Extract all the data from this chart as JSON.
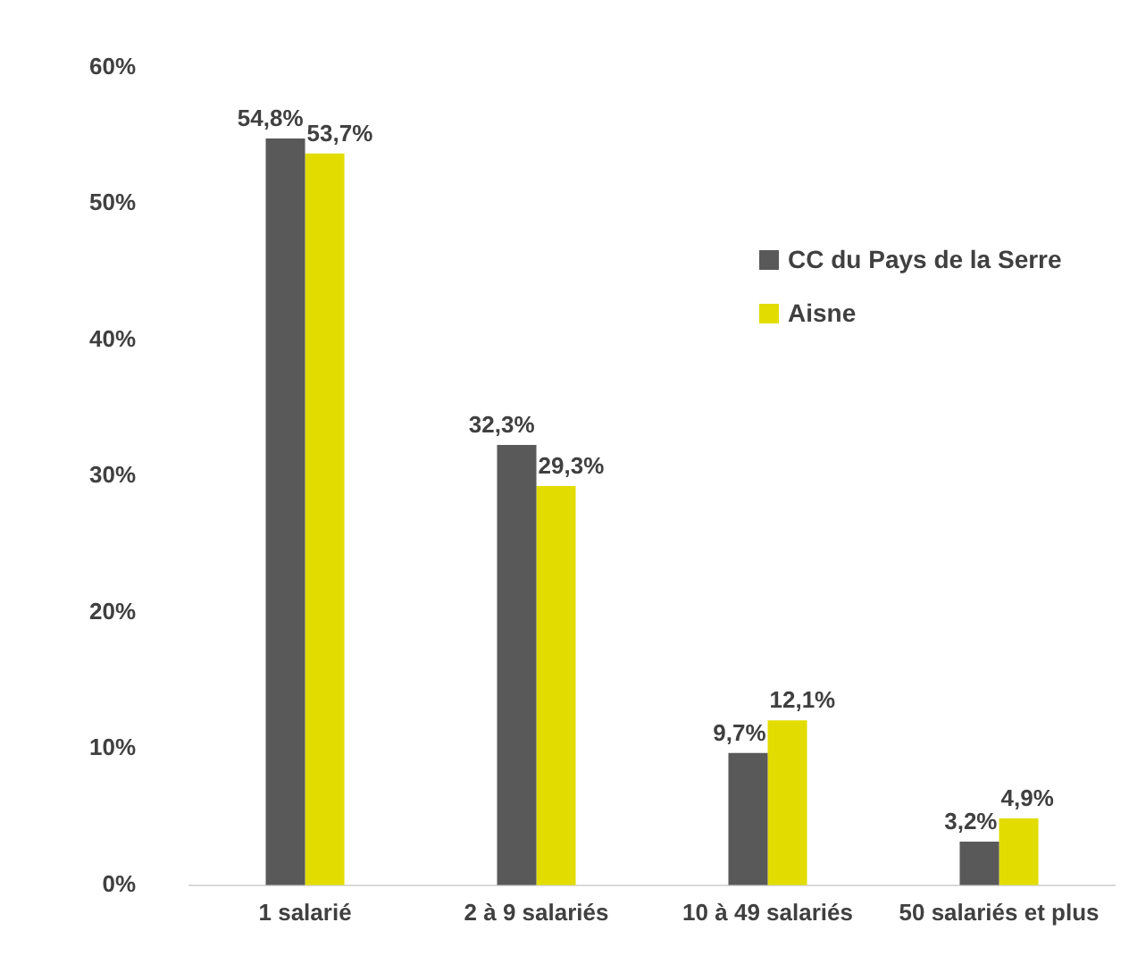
{
  "chart_data": {
    "type": "bar",
    "categories": [
      "1 salarié",
      "2 à 9 salariés",
      "10 à 49 salariés",
      "50 salariés et plus"
    ],
    "series": [
      {
        "name": "CC du Pays de la Serre",
        "color": "#595959",
        "values": [
          54.8,
          32.3,
          9.7,
          3.2
        ],
        "value_labels": [
          "54,8%",
          "32,3%",
          "9,7%",
          "3,2%"
        ]
      },
      {
        "name": "Aisne",
        "color": "#e2dc00",
        "values": [
          53.7,
          29.3,
          12.1,
          4.9
        ],
        "value_labels": [
          "53,7%",
          "29,3%",
          "12,1%",
          "4,9%"
        ]
      }
    ],
    "ylim": [
      0,
      60
    ],
    "yticks": [
      {
        "value": 0,
        "label": "0%"
      },
      {
        "value": 10,
        "label": "10%"
      },
      {
        "value": 20,
        "label": "20%"
      },
      {
        "value": 30,
        "label": "30%"
      },
      {
        "value": 40,
        "label": "40%"
      },
      {
        "value": 50,
        "label": "50%"
      },
      {
        "value": 60,
        "label": "60%"
      }
    ],
    "grid": false,
    "legend": "right"
  }
}
